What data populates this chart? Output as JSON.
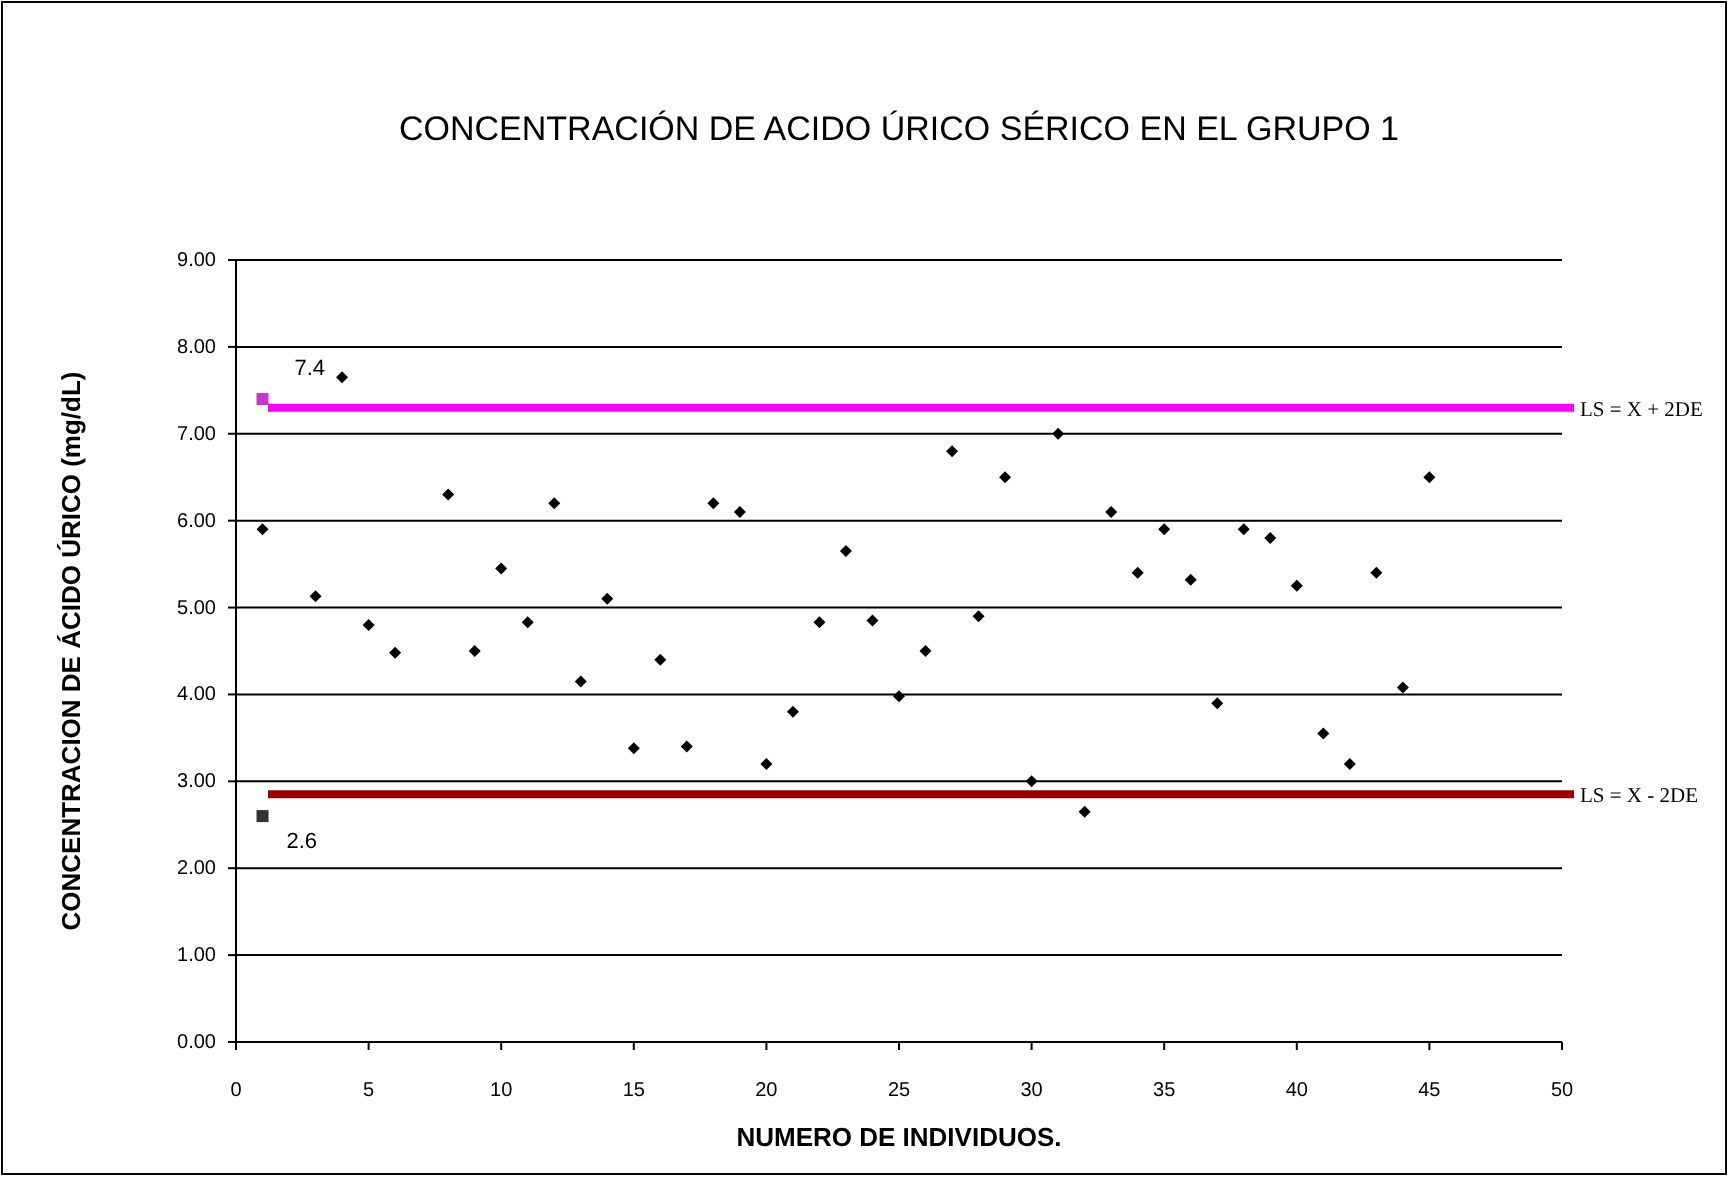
{
  "chart_data": {
    "type": "scatter",
    "title": "CONCENTRACIÓN DE ACIDO ÚRICO SÉRICO EN EL GRUPO 1",
    "xlabel": "NUMERO DE INDIVIDUOS.",
    "ylabel": "CONCENTRACION DE ÁCIDO ÚRICO (mg/dL)",
    "xlim": [
      0,
      50
    ],
    "xticks": [
      0,
      5,
      10,
      15,
      20,
      25,
      30,
      35,
      40,
      45,
      50
    ],
    "ylim": [
      0,
      9
    ],
    "yticks": [
      {
        "value": 0,
        "label": "0.00"
      },
      {
        "value": 1,
        "label": "1.00"
      },
      {
        "value": 2,
        "label": "2.00"
      },
      {
        "value": 3,
        "label": "3.00"
      },
      {
        "value": 4,
        "label": "4.00"
      },
      {
        "value": 5,
        "label": "5.00"
      },
      {
        "value": 6,
        "label": "6.00"
      },
      {
        "value": 7,
        "label": "7.00"
      },
      {
        "value": 8,
        "label": "8.00"
      },
      {
        "value": 9,
        "label": "9.00"
      }
    ],
    "grid": "y",
    "series": [
      {
        "color": "#000000",
        "marker": "diamond",
        "x": [
          1,
          3,
          4,
          5,
          6,
          8,
          9,
          10,
          11,
          12,
          13,
          14,
          15,
          16,
          17,
          18,
          19,
          20,
          21,
          22,
          23,
          24,
          25,
          26,
          27,
          28,
          29,
          30,
          31,
          32,
          33,
          34,
          35,
          36,
          37,
          38,
          39,
          40,
          41,
          42,
          43,
          44,
          45
        ],
        "values": [
          5.9,
          5.13,
          7.65,
          4.8,
          4.48,
          6.3,
          4.5,
          5.45,
          4.83,
          6.2,
          4.15,
          5.1,
          3.38,
          4.4,
          3.4,
          6.2,
          6.1,
          3.2,
          3.8,
          4.83,
          5.65,
          4.85,
          3.98,
          4.5,
          6.8,
          4.9,
          6.5,
          3.0,
          7.0,
          2.65,
          6.1,
          5.4,
          5.9,
          5.32,
          3.9,
          5.9,
          5.8,
          5.25,
          3.55,
          3.2,
          5.4,
          4.08,
          6.5
        ]
      },
      {
        "color": "#cc33cc",
        "marker": "square",
        "x": [
          1
        ],
        "values": [
          7.4
        ],
        "value_labels": [
          "7.4"
        ]
      },
      {
        "color": "#333333",
        "marker": "square",
        "x": [
          1
        ],
        "values": [
          2.6
        ],
        "value_labels": [
          "2.6"
        ]
      }
    ],
    "ref_lines": [
      {
        "axis": "y",
        "value": 7.3,
        "label": "LS = X + 2DE",
        "color": "#ff00ff"
      },
      {
        "axis": "y",
        "value": 2.85,
        "label": "LS = X - 2DE",
        "color": "#990000"
      }
    ]
  }
}
